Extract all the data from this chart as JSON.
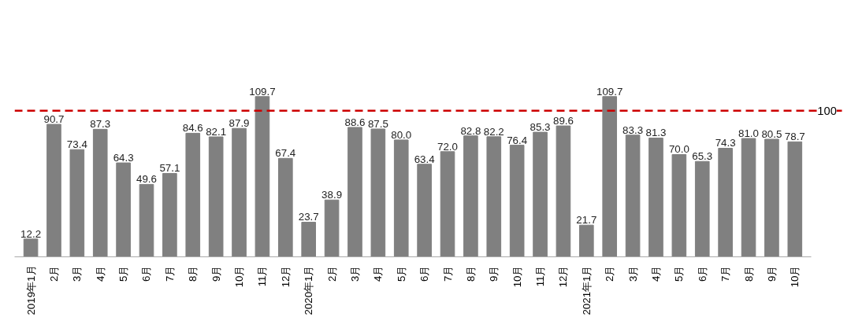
{
  "chart_data": {
    "type": "bar",
    "categories": [
      "2019年1月",
      "2月",
      "3月",
      "4月",
      "5月",
      "6月",
      "7月",
      "8月",
      "9月",
      "10月",
      "11月",
      "12月",
      "2020年1月",
      "2月",
      "3月",
      "4月",
      "5月",
      "6月",
      "7月",
      "8月",
      "9月",
      "10月",
      "11月",
      "12月",
      "2021年1月",
      "2月",
      "3月",
      "4月",
      "5月",
      "6月",
      "7月",
      "8月",
      "9月",
      "10月"
    ],
    "values": [
      12.2,
      90.7,
      73.4,
      87.3,
      64.3,
      49.6,
      57.1,
      84.6,
      82.1,
      87.9,
      109.7,
      67.4,
      23.7,
      38.9,
      88.6,
      87.5,
      80.0,
      63.4,
      72.0,
      82.8,
      82.2,
      76.4,
      85.3,
      89.6,
      21.7,
      109.7,
      83.3,
      81.3,
      70.0,
      65.3,
      74.3,
      81.0,
      80.5,
      78.7
    ],
    "value_labels": [
      "12.2",
      "90.7",
      "73.4",
      "87.3",
      "64.3",
      "49.6",
      "57.1",
      "84.6",
      "82.1",
      "87.9",
      "109.7",
      "67.4",
      "23.7",
      "38.9",
      "88.6",
      "87.5",
      "80.0",
      "63.4",
      "72.0",
      "82.8",
      "82.2",
      "76.4",
      "85.3",
      "89.6",
      "21.7",
      "109.7",
      "83.3",
      "81.3",
      "70.0",
      "65.3",
      "74.3",
      "81.0",
      "80.5",
      "78.7"
    ],
    "color": "#808080",
    "ref_lines": [
      {
        "axis": "y",
        "value": 100,
        "label": "100",
        "color": "#cc0000",
        "line_style": "dashed"
      }
    ]
  }
}
